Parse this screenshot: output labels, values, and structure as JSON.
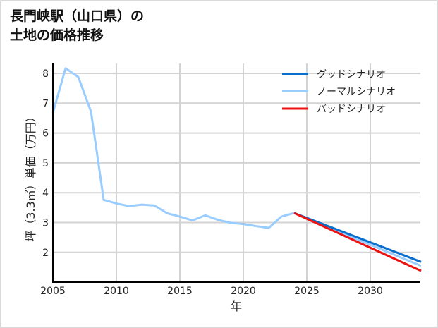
{
  "title_line1": "長門峡駅（山口県）の",
  "title_line2": "土地の価格推移",
  "chart_data": {
    "type": "line",
    "title": "長門峡駅（山口県）の土地の価格推移",
    "xlabel": "年",
    "ylabel": "坪（3.3㎡）単価（万円）",
    "xlim": [
      2005,
      2034
    ],
    "ylim": [
      1.0,
      8.5
    ],
    "x_ticks": [
      2005,
      2010,
      2015,
      2020,
      2025,
      2030
    ],
    "y_ticks": [
      2,
      3,
      4,
      5,
      6,
      7,
      8
    ],
    "grid": true,
    "legend_position": "upper right",
    "series": [
      {
        "name": "グッドシナリオ",
        "color": "#0a6fcc",
        "x": [
          2024,
          2034
        ],
        "values": [
          3.32,
          1.68
        ]
      },
      {
        "name": "ノーマルシナリオ",
        "color": "#99ccff",
        "x": [
          2005,
          2006,
          2007,
          2008,
          2009,
          2010,
          2011,
          2012,
          2013,
          2014,
          2015,
          2016,
          2017,
          2018,
          2019,
          2020,
          2021,
          2022,
          2023,
          2024,
          2034
        ],
        "values": [
          6.68,
          8.17,
          7.88,
          6.72,
          3.76,
          3.64,
          3.55,
          3.6,
          3.57,
          3.31,
          3.2,
          3.07,
          3.24,
          3.09,
          2.99,
          2.95,
          2.88,
          2.82,
          3.2,
          3.32,
          1.55
        ]
      },
      {
        "name": "バッドシナリオ",
        "color": "#ee1111",
        "x": [
          2024,
          2034
        ],
        "values": [
          3.32,
          1.38
        ]
      }
    ]
  }
}
